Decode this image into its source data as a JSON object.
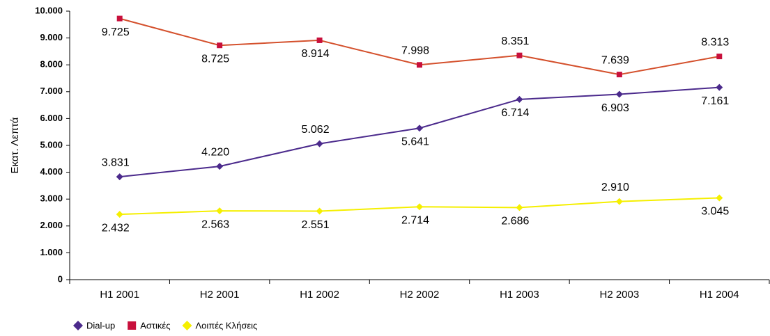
{
  "chart_data": {
    "type": "line",
    "y_label": "Εκατ. Λεπτά",
    "categories": [
      "H1 2001",
      "H2 2001",
      "H1 2002",
      "H2 2002",
      "H1 2003",
      "H2 2003",
      "H1 2004"
    ],
    "series": [
      {
        "name": "Dial-up",
        "color": "#4b2a8c",
        "marker": "diamond",
        "values": [
          3831,
          4220,
          5062,
          5641,
          6714,
          6903,
          7161
        ],
        "value_labels": [
          "3.831",
          "4.220",
          "5.062",
          "5.641",
          "6.714",
          "6.903",
          "7.161"
        ]
      },
      {
        "name": "Αστικές",
        "color": "#d4502c",
        "marker_color": "#c8103c",
        "marker": "square",
        "values": [
          9725,
          8725,
          8914,
          7998,
          8351,
          7639,
          8313
        ],
        "value_labels": [
          "9.725",
          "8.725",
          "8.914",
          "7.998",
          "8.351",
          "7.639",
          "8.313"
        ]
      },
      {
        "name": "Λοιπές Κλήσεις",
        "color": "#f5ef00",
        "marker": "diamond",
        "values": [
          2432,
          2563,
          2551,
          2714,
          2686,
          2910,
          3045
        ],
        "value_labels": [
          "2.432",
          "2.563",
          "2.551",
          "2.714",
          "2.686",
          "2.910",
          "3.045"
        ]
      }
    ],
    "ylim": [
      0,
      10000
    ],
    "yticks": [
      0,
      {
        "value": 1000,
        "label": "1.000"
      },
      {
        "value": 2000,
        "label": "2.000"
      },
      {
        "value": 3000,
        "label": "3.000"
      },
      {
        "value": 4000,
        "label": "4.000"
      },
      {
        "value": 5000,
        "label": "5.000"
      },
      {
        "value": 6000,
        "label": "6.000"
      },
      {
        "value": 7000,
        "label": "7.000"
      },
      {
        "value": 8000,
        "label": "8.000"
      },
      {
        "value": 9000,
        "label": "9.000"
      },
      {
        "value": 10000,
        "label": "10.000"
      }
    ],
    "grid": false,
    "legend": "bottom-left"
  }
}
